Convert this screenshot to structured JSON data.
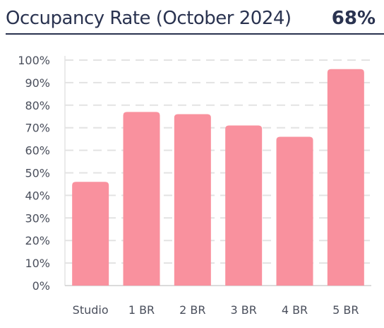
{
  "header": {
    "title": "Occupancy Rate (October 2024)",
    "kpi": "68%"
  },
  "colors": {
    "bar": "#f9919e",
    "grid": "#e3e3e3",
    "axis_text": "#4a4f5c",
    "title": "#2a3350"
  },
  "chart_data": {
    "type": "bar",
    "categories": [
      "Studio",
      "1 BR",
      "2 BR",
      "3 BR",
      "4 BR",
      "5 BR"
    ],
    "values": [
      46,
      77,
      76,
      71,
      66,
      96
    ],
    "ylim": [
      0,
      100
    ],
    "yticks": [
      "0%",
      "10%",
      "20%",
      "30%",
      "40%",
      "50%",
      "60%",
      "70%",
      "80%",
      "90%",
      "100%"
    ],
    "grid": true
  }
}
